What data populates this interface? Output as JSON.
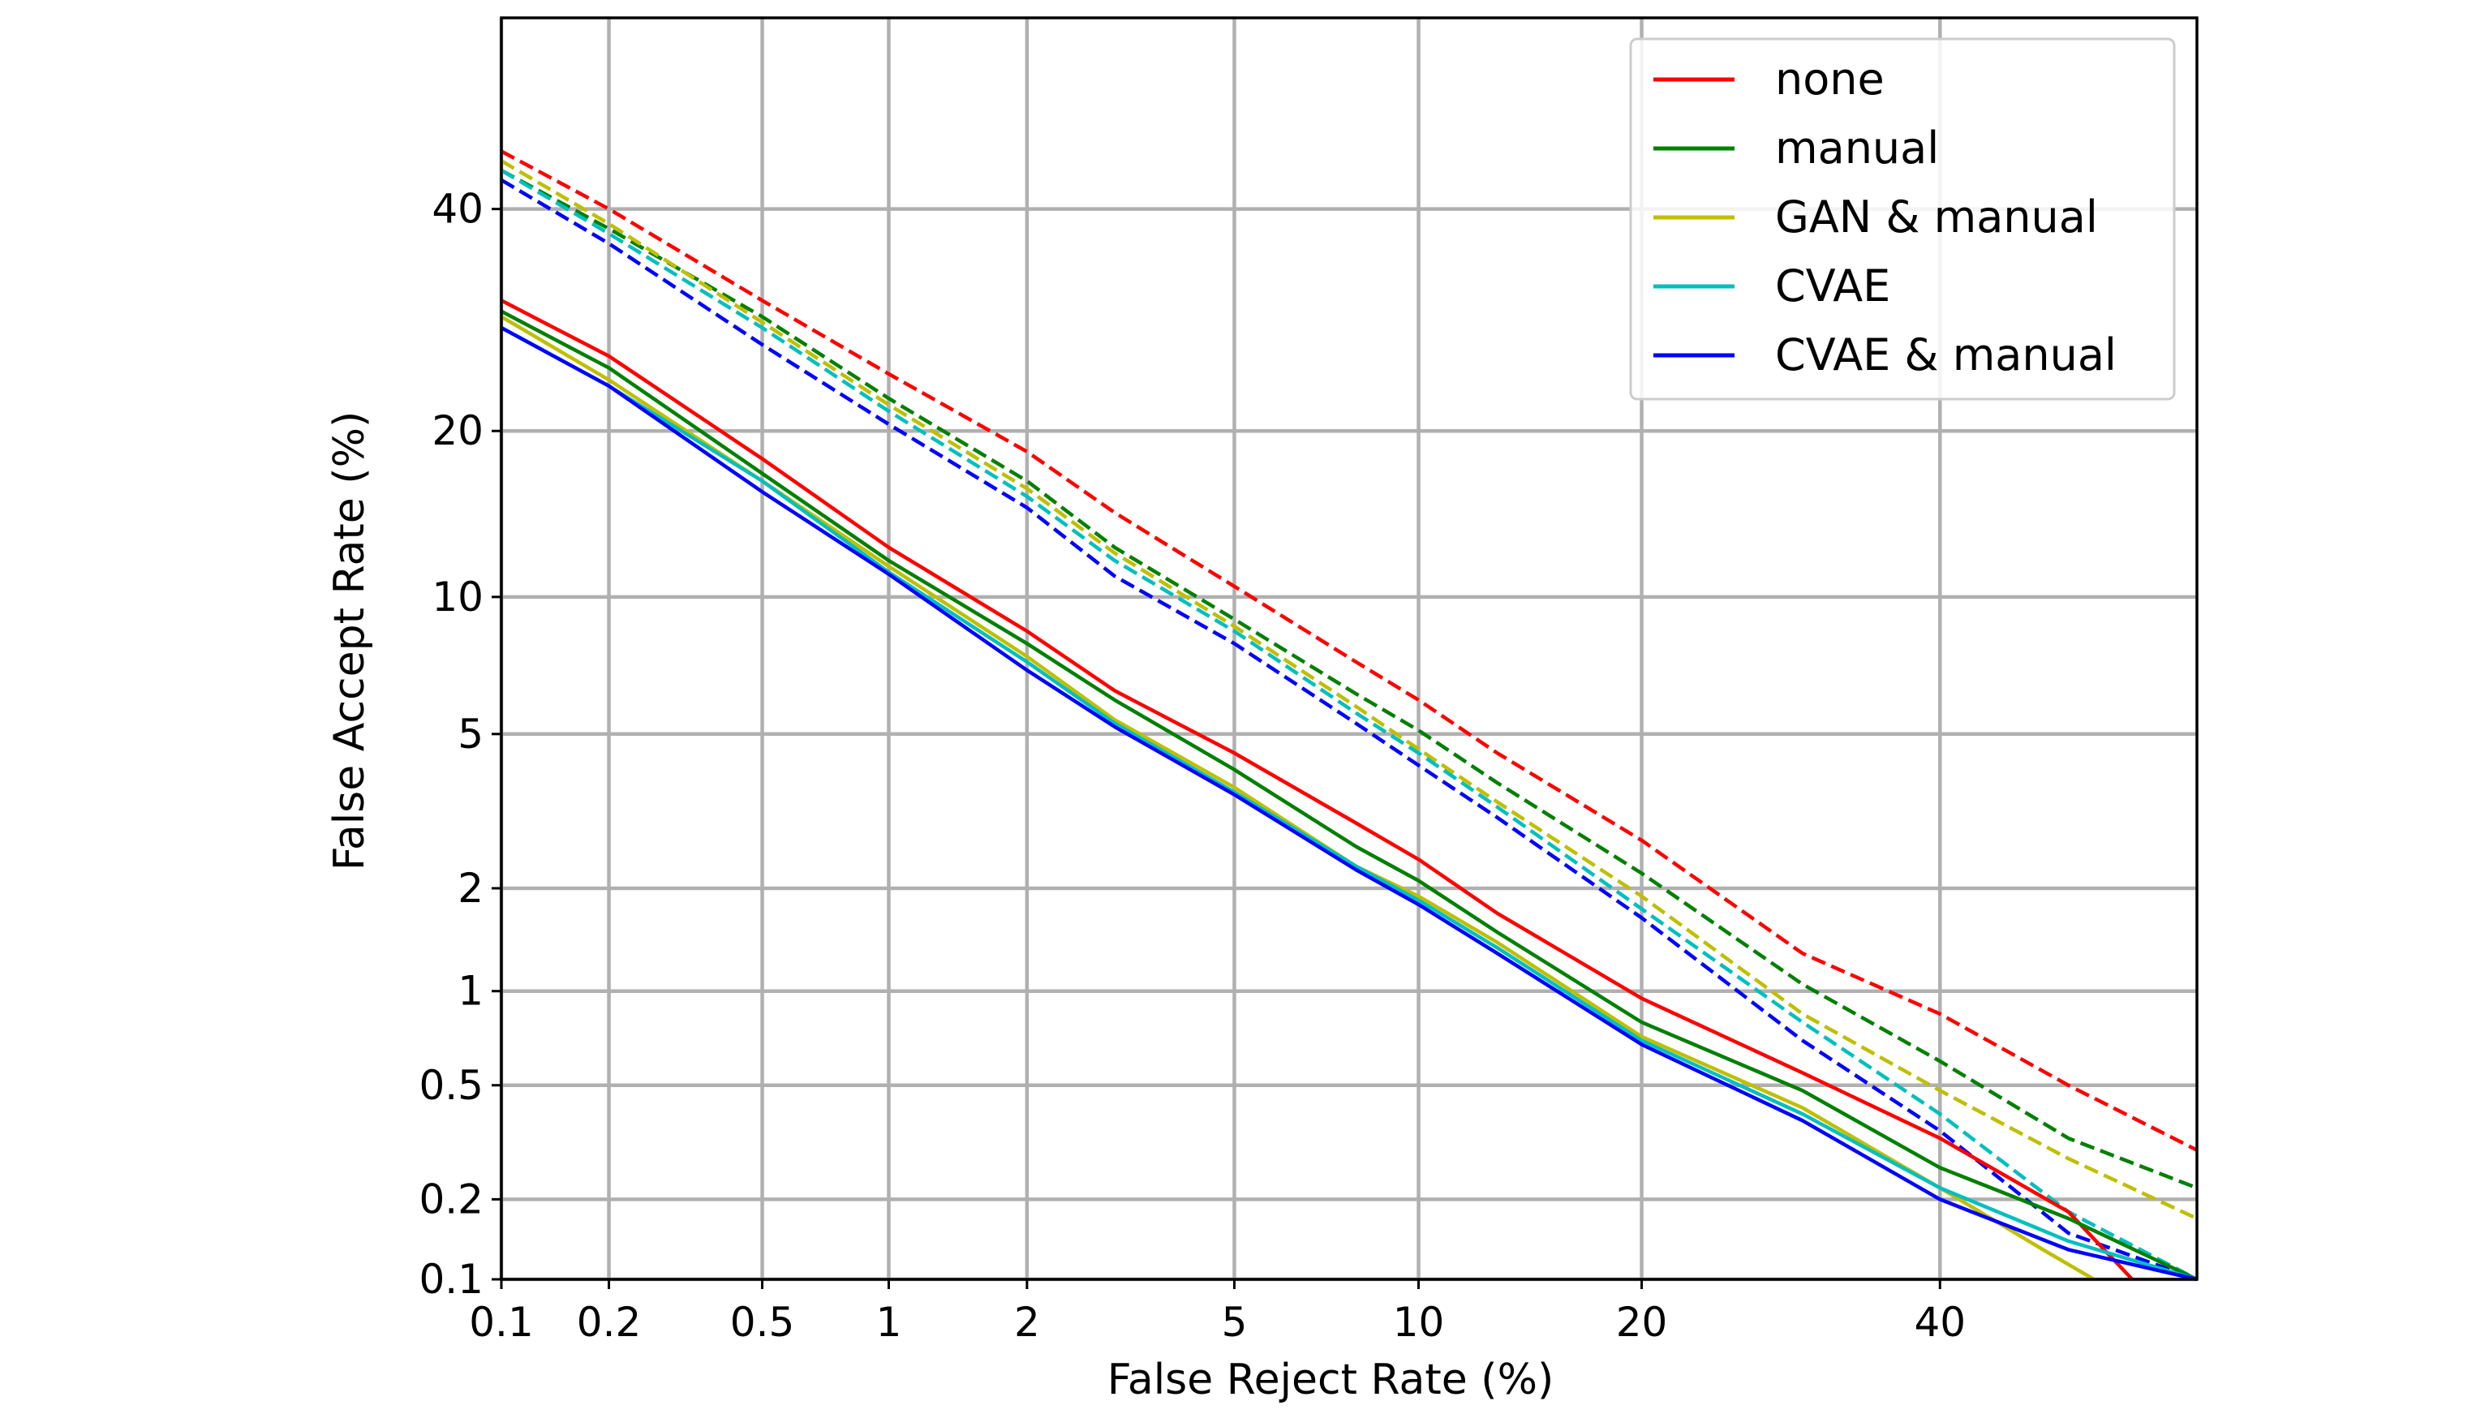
{
  "chart_data": {
    "type": "line",
    "title": "",
    "xlabel": "False Reject Rate (%)",
    "ylabel": "False Accept Rate (%)",
    "xscale": "probit",
    "yscale": "probit",
    "xlim": [
      0.1,
      60
    ],
    "ylim": [
      0.1,
      60
    ],
    "grid": true,
    "legend_position": "top-right",
    "xticks": [
      {
        "value": 0.1,
        "label": "0.1"
      },
      {
        "value": 0.2,
        "label": "0.2"
      },
      {
        "value": 0.5,
        "label": "0.5"
      },
      {
        "value": 1,
        "label": "1"
      },
      {
        "value": 2,
        "label": "2"
      },
      {
        "value": 5,
        "label": "5"
      },
      {
        "value": 10,
        "label": "10"
      },
      {
        "value": 20,
        "label": "20"
      },
      {
        "value": 40,
        "label": "40"
      }
    ],
    "yticks": [
      {
        "value": 0.1,
        "label": "0.1"
      },
      {
        "value": 0.2,
        "label": "0.2"
      },
      {
        "value": 0.5,
        "label": "0.5"
      },
      {
        "value": 1,
        "label": "1"
      },
      {
        "value": 2,
        "label": "2"
      },
      {
        "value": 5,
        "label": "5"
      },
      {
        "value": 10,
        "label": "10"
      },
      {
        "value": 20,
        "label": "20"
      },
      {
        "value": 40,
        "label": "40"
      }
    ],
    "legend": [
      {
        "label": "none",
        "color": "#ff0000"
      },
      {
        "label": "manual",
        "color": "#008000"
      },
      {
        "label": "GAN & manual",
        "color": "#bfbf00"
      },
      {
        "label": "CVAE",
        "color": "#00bfbf"
      },
      {
        "label": "CVAE & manual",
        "color": "#0000ff"
      }
    ],
    "series": [
      {
        "name": "none",
        "style": "solid",
        "color": "#ff0000",
        "x": [
          0.1,
          0.2,
          0.5,
          1,
          2,
          3,
          5,
          8,
          10,
          13,
          20,
          30,
          40,
          50,
          55
        ],
        "y": [
          31,
          26,
          18,
          12.5,
          8.5,
          6.3,
          4.5,
          3,
          2.4,
          1.7,
          0.95,
          0.55,
          0.33,
          0.18,
          0.1
        ]
      },
      {
        "name": "manual",
        "style": "solid",
        "color": "#008000",
        "x": [
          0.1,
          0.2,
          0.5,
          1,
          2,
          3,
          5,
          8,
          10,
          13,
          20,
          30,
          40,
          50,
          60
        ],
        "y": [
          30,
          25,
          17,
          11.8,
          8,
          6,
          4.1,
          2.6,
          2.1,
          1.5,
          0.8,
          0.48,
          0.26,
          0.17,
          0.1
        ]
      },
      {
        "name": "GAN & manual",
        "style": "solid",
        "color": "#bfbf00",
        "x": [
          0.1,
          0.2,
          0.5,
          1,
          2,
          3,
          5,
          8,
          10,
          13,
          20,
          30,
          40,
          48,
          52
        ],
        "y": [
          29.5,
          24,
          16.5,
          11.5,
          7.5,
          5.4,
          3.7,
          2.3,
          1.9,
          1.4,
          0.72,
          0.42,
          0.22,
          0.13,
          0.1
        ]
      },
      {
        "name": "CVAE",
        "style": "solid",
        "color": "#00bfbf",
        "x": [
          0.1,
          0.2,
          0.5,
          1,
          2,
          3,
          5,
          8,
          10,
          13,
          20,
          30,
          40,
          50,
          60
        ],
        "y": [
          28.5,
          23.5,
          16.5,
          11.2,
          7.3,
          5.3,
          3.6,
          2.3,
          1.85,
          1.35,
          0.7,
          0.4,
          0.22,
          0.14,
          0.1
        ]
      },
      {
        "name": "CVAE & manual",
        "style": "solid",
        "color": "#0000ff",
        "x": [
          0.1,
          0.2,
          0.5,
          1,
          2,
          3,
          5,
          8,
          10,
          13,
          20,
          30,
          40,
          50,
          60
        ],
        "y": [
          28.5,
          23.5,
          15.8,
          11.1,
          7,
          5.2,
          3.55,
          2.25,
          1.8,
          1.3,
          0.68,
          0.38,
          0.2,
          0.13,
          0.1
        ]
      },
      {
        "name": "none",
        "style": "dashed",
        "color": "#ff0000",
        "x": [
          0.1,
          0.2,
          0.5,
          1,
          2,
          3,
          5,
          8,
          10,
          13,
          20,
          30,
          40,
          50,
          60
        ],
        "y": [
          46,
          40,
          31,
          24.5,
          18.5,
          14.5,
          10.5,
          7.3,
          6,
          4.5,
          2.7,
          1.3,
          0.85,
          0.5,
          0.3
        ]
      },
      {
        "name": "manual",
        "style": "dashed",
        "color": "#008000",
        "x": [
          0.1,
          0.2,
          0.5,
          1,
          2,
          3,
          5,
          8,
          10,
          13,
          20,
          30,
          40,
          50,
          60
        ],
        "y": [
          44,
          38,
          29.5,
          22.5,
          16.5,
          12.5,
          9,
          6.2,
          5.1,
          3.8,
          2.2,
          1.05,
          0.6,
          0.33,
          0.22
        ]
      },
      {
        "name": "GAN & manual",
        "style": "dashed",
        "color": "#bfbf00",
        "x": [
          0.1,
          0.2,
          0.5,
          1,
          2,
          3,
          5,
          8,
          10,
          13,
          20,
          30,
          40,
          50,
          60
        ],
        "y": [
          45,
          38.5,
          29,
          22,
          16,
          12.2,
          8.7,
          5.8,
          4.6,
          3.4,
          1.9,
          0.85,
          0.48,
          0.28,
          0.17
        ]
      },
      {
        "name": "CVAE",
        "style": "dashed",
        "color": "#00bfbf",
        "x": [
          0.1,
          0.2,
          0.5,
          1,
          2,
          3,
          5,
          8,
          10,
          13,
          20,
          30,
          40,
          50,
          60
        ],
        "y": [
          44,
          37.5,
          28.5,
          21.5,
          15.5,
          11.8,
          8.5,
          5.6,
          4.5,
          3.3,
          1.75,
          0.8,
          0.4,
          0.18,
          0.1
        ]
      },
      {
        "name": "CVAE & manual",
        "style": "dashed",
        "color": "#0000ff",
        "x": [
          0.1,
          0.2,
          0.5,
          1,
          2,
          3,
          5,
          8,
          10,
          13,
          20,
          30,
          40,
          50,
          60
        ],
        "y": [
          43,
          36.5,
          27,
          20.5,
          14.8,
          11,
          8,
          5.3,
          4.2,
          3.1,
          1.65,
          0.7,
          0.35,
          0.15,
          0.1
        ]
      }
    ]
  }
}
